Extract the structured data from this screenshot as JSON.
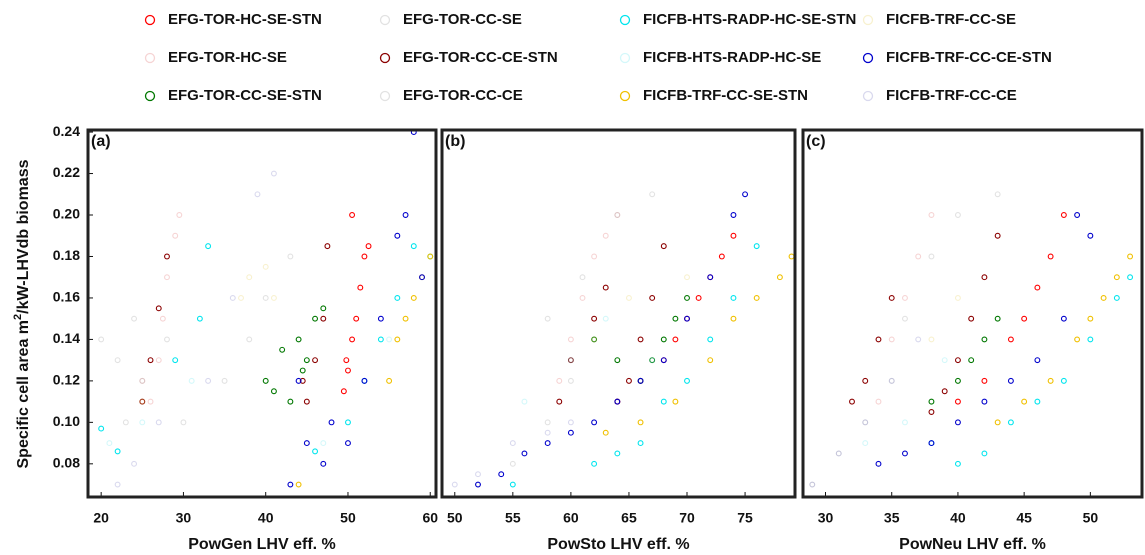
{
  "chart_data": [
    {
      "type": "scatter",
      "label": "(a)",
      "xlabel": "PowGen LHV eff. %",
      "ylabel_parts": [
        "Specific cell area m",
        "2",
        "/kW-LHVdb biomass"
      ],
      "xlim": [
        18.4,
        60.7
      ],
      "xticks": [
        20,
        30,
        40,
        50,
        60
      ],
      "ylim": [
        0.064,
        0.241
      ],
      "yticks": [
        0.08,
        {
          "value": 0.1,
          "label": "0.10"
        },
        0.12,
        0.14,
        0.16,
        0.18,
        {
          "value": 0.2,
          "label": "0.20"
        },
        0.22,
        0.24
      ],
      "series": [
        {
          "name": "EFG-TOR-HC-SE-STN",
          "color": "#ff0000",
          "alpha": 1,
          "x": [
            49.5,
            50,
            50.5,
            51,
            51.5,
            52,
            52.5,
            50.5,
            49.8
          ],
          "values": [
            0.115,
            0.125,
            0.14,
            0.15,
            0.165,
            0.18,
            0.185,
            0.2,
            0.13
          ]
        },
        {
          "name": "EFG-TOR-HC-SE",
          "color": "#e07070",
          "alpha": 0.3,
          "x": [
            26,
            27,
            27.5,
            28,
            29,
            29.5,
            25
          ],
          "values": [
            0.11,
            0.13,
            0.15,
            0.17,
            0.19,
            0.2,
            0.12
          ]
        },
        {
          "name": "EFG-TOR-CC-SE-STN",
          "color": "#007700",
          "alpha": 1,
          "x": [
            40,
            41,
            42,
            43,
            44,
            45,
            46,
            47,
            44.5
          ],
          "values": [
            0.12,
            0.115,
            0.135,
            0.11,
            0.14,
            0.13,
            0.15,
            0.155,
            0.125
          ]
        },
        {
          "name": "EFG-TOR-CC-SE",
          "color": "#a0a0a0",
          "alpha": 0.3,
          "x": [
            20,
            22,
            24,
            25,
            28,
            23
          ],
          "values": [
            0.14,
            0.13,
            0.15,
            0.12,
            0.14,
            0.1
          ]
        },
        {
          "name": "EFG-TOR-CC-CE-STN",
          "color": "#8b0000",
          "alpha": 1,
          "x": [
            25,
            26,
            27,
            28,
            45,
            46,
            47,
            47.5,
            44.5
          ],
          "values": [
            0.11,
            0.13,
            0.155,
            0.18,
            0.11,
            0.13,
            0.15,
            0.185,
            0.12
          ]
        },
        {
          "name": "EFG-TOR-CC-CE",
          "color": "#a0a0a0",
          "alpha": 0.3,
          "x": [
            30,
            35,
            38,
            40,
            43
          ],
          "values": [
            0.1,
            0.12,
            0.14,
            0.16,
            0.18
          ]
        },
        {
          "name": "FICFB-HTS-RADP-HC-SE-STN",
          "color": "#00e5ee",
          "alpha": 1,
          "x": [
            20,
            22,
            29,
            32,
            33,
            46,
            50,
            52,
            54,
            56,
            58,
            60
          ],
          "values": [
            0.097,
            0.086,
            0.13,
            0.15,
            0.185,
            0.086,
            0.1,
            0.12,
            0.14,
            0.16,
            0.185,
            0.18
          ]
        },
        {
          "name": "FICFB-HTS-RADP-HC-SE",
          "color": "#70e8f0",
          "alpha": 0.3,
          "x": [
            21,
            25,
            31,
            47,
            55
          ],
          "values": [
            0.09,
            0.1,
            0.12,
            0.09,
            0.14
          ]
        },
        {
          "name": "FICFB-TRF-CC-SE-STN",
          "color": "#f0c000",
          "alpha": 1,
          "x": [
            55,
            56,
            57,
            58,
            59,
            60,
            44
          ],
          "values": [
            0.12,
            0.14,
            0.15,
            0.16,
            0.17,
            0.18,
            0.07
          ]
        },
        {
          "name": "FICFB-TRF-CC-SE",
          "color": "#e8d060",
          "alpha": 0.3,
          "x": [
            37,
            38,
            40,
            41,
            25
          ],
          "values": [
            0.16,
            0.17,
            0.175,
            0.16,
            0.11
          ]
        },
        {
          "name": "FICFB-TRF-CC-CE-STN",
          "color": "#0000cc",
          "alpha": 1,
          "x": [
            43,
            45,
            47,
            48,
            50,
            52,
            54,
            56,
            57,
            58,
            59,
            44
          ],
          "values": [
            0.07,
            0.09,
            0.08,
            0.1,
            0.09,
            0.12,
            0.15,
            0.19,
            0.2,
            0.24,
            0.17,
            0.12
          ]
        },
        {
          "name": "FICFB-TRF-CC-CE",
          "color": "#8080c8",
          "alpha": 0.3,
          "x": [
            22,
            24,
            27,
            33,
            36,
            39,
            41
          ],
          "values": [
            0.07,
            0.08,
            0.1,
            0.12,
            0.16,
            0.21,
            0.22
          ]
        }
      ]
    },
    {
      "type": "scatter",
      "label": "(b)",
      "xlabel": "PowSto LHV eff. %",
      "xlim": [
        48.9,
        79.3
      ],
      "xticks": [
        50,
        55,
        60,
        65,
        70,
        75
      ],
      "ylim": [
        0.064,
        0.241
      ],
      "series": [
        {
          "color": "#ff0000",
          "alpha": 1,
          "x": [
            64,
            66,
            68,
            69,
            70,
            71,
            72,
            73,
            74
          ],
          "values": [
            0.11,
            0.12,
            0.13,
            0.14,
            0.15,
            0.16,
            0.17,
            0.18,
            0.19
          ]
        },
        {
          "color": "#e07070",
          "alpha": 0.3,
          "x": [
            59,
            60,
            61,
            62,
            63,
            64
          ],
          "values": [
            0.12,
            0.14,
            0.16,
            0.18,
            0.19,
            0.2
          ]
        },
        {
          "color": "#007700",
          "alpha": 1,
          "x": [
            62,
            64,
            66,
            67,
            68,
            69,
            70
          ],
          "values": [
            0.14,
            0.13,
            0.12,
            0.13,
            0.14,
            0.15,
            0.16
          ]
        },
        {
          "color": "#a0a0a0",
          "alpha": 0.3,
          "x": [
            52,
            55,
            58,
            60
          ],
          "values": [
            0.07,
            0.08,
            0.1,
            0.12
          ]
        },
        {
          "color": "#8b0000",
          "alpha": 1,
          "x": [
            59,
            60,
            62,
            63,
            64,
            65,
            66,
            67,
            68
          ],
          "values": [
            0.11,
            0.13,
            0.15,
            0.165,
            0.11,
            0.12,
            0.14,
            0.16,
            0.185
          ]
        },
        {
          "color": "#a0a0a0",
          "alpha": 0.3,
          "x": [
            58,
            61,
            64,
            67
          ],
          "values": [
            0.15,
            0.17,
            0.2,
            0.21
          ]
        },
        {
          "color": "#00e5ee",
          "alpha": 1,
          "x": [
            55,
            62,
            64,
            66,
            68,
            70,
            72,
            74,
            76
          ],
          "values": [
            0.07,
            0.08,
            0.085,
            0.09,
            0.11,
            0.12,
            0.14,
            0.16,
            0.185
          ]
        },
        {
          "color": "#70e8f0",
          "alpha": 0.3,
          "x": [
            56,
            60,
            63,
            67
          ],
          "values": [
            0.11,
            0.13,
            0.15,
            0.13
          ]
        },
        {
          "color": "#f0c000",
          "alpha": 1,
          "x": [
            63,
            66,
            69,
            72,
            74,
            76,
            78,
            79
          ],
          "values": [
            0.095,
            0.1,
            0.11,
            0.13,
            0.15,
            0.16,
            0.17,
            0.18
          ]
        },
        {
          "color": "#e8d060",
          "alpha": 0.3,
          "x": [
            62,
            65,
            70
          ],
          "values": [
            0.14,
            0.16,
            0.17
          ]
        },
        {
          "color": "#0000cc",
          "alpha": 1,
          "x": [
            52,
            54,
            56,
            58,
            60,
            62,
            64,
            66,
            68,
            70,
            72,
            74,
            75
          ],
          "values": [
            0.07,
            0.075,
            0.085,
            0.09,
            0.095,
            0.1,
            0.11,
            0.12,
            0.13,
            0.15,
            0.17,
            0.2,
            0.21
          ]
        },
        {
          "color": "#8080c8",
          "alpha": 0.3,
          "x": [
            50,
            52,
            55,
            58,
            60
          ],
          "values": [
            0.07,
            0.075,
            0.09,
            0.095,
            0.1
          ]
        }
      ]
    },
    {
      "type": "scatter",
      "label": "(c)",
      "xlabel": "PowNeu LHV eff. %",
      "xlim": [
        28.3,
        53.9
      ],
      "xticks": [
        30,
        35,
        40,
        45,
        50
      ],
      "ylim": [
        0.064,
        0.241
      ],
      "series": [
        {
          "color": "#ff0000",
          "alpha": 1,
          "x": [
            40,
            42,
            44,
            45,
            46,
            47,
            48
          ],
          "values": [
            0.11,
            0.12,
            0.14,
            0.15,
            0.165,
            0.18,
            0.2
          ]
        },
        {
          "color": "#e07070",
          "alpha": 0.3,
          "x": [
            34,
            35,
            36,
            37,
            38
          ],
          "values": [
            0.11,
            0.14,
            0.16,
            0.18,
            0.2
          ]
        },
        {
          "color": "#007700",
          "alpha": 1,
          "x": [
            38,
            40,
            41,
            42,
            43
          ],
          "values": [
            0.11,
            0.12,
            0.13,
            0.14,
            0.15
          ]
        },
        {
          "color": "#a0a0a0",
          "alpha": 0.3,
          "x": [
            29,
            31,
            33,
            35
          ],
          "values": [
            0.07,
            0.085,
            0.1,
            0.12
          ]
        },
        {
          "color": "#8b0000",
          "alpha": 1,
          "x": [
            32,
            33,
            34,
            35,
            38,
            39,
            40,
            41,
            42,
            43
          ],
          "values": [
            0.11,
            0.12,
            0.14,
            0.16,
            0.105,
            0.115,
            0.13,
            0.15,
            0.17,
            0.19
          ]
        },
        {
          "color": "#a0a0a0",
          "alpha": 0.3,
          "x": [
            36,
            38,
            40,
            43
          ],
          "values": [
            0.15,
            0.18,
            0.2,
            0.21
          ]
        },
        {
          "color": "#00e5ee",
          "alpha": 1,
          "x": [
            38,
            40,
            42,
            44,
            46,
            48,
            50,
            52,
            53
          ],
          "values": [
            0.09,
            0.08,
            0.085,
            0.1,
            0.11,
            0.12,
            0.14,
            0.16,
            0.17
          ]
        },
        {
          "color": "#70e8f0",
          "alpha": 0.3,
          "x": [
            33,
            36,
            39
          ],
          "values": [
            0.09,
            0.1,
            0.13
          ]
        },
        {
          "color": "#f0c000",
          "alpha": 1,
          "x": [
            43,
            45,
            47,
            49,
            50,
            51,
            52,
            53
          ],
          "values": [
            0.1,
            0.11,
            0.12,
            0.14,
            0.15,
            0.16,
            0.17,
            0.18
          ]
        },
        {
          "color": "#e8d060",
          "alpha": 0.3,
          "x": [
            38,
            40
          ],
          "values": [
            0.14,
            0.16
          ]
        },
        {
          "color": "#0000cc",
          "alpha": 1,
          "x": [
            34,
            36,
            38,
            40,
            42,
            44,
            46,
            48,
            49,
            50
          ],
          "values": [
            0.08,
            0.085,
            0.09,
            0.1,
            0.11,
            0.12,
            0.13,
            0.15,
            0.2,
            0.19
          ]
        },
        {
          "color": "#8080c8",
          "alpha": 0.3,
          "x": [
            29,
            31,
            33,
            35,
            37
          ],
          "values": [
            0.07,
            0.085,
            0.1,
            0.12,
            0.14
          ]
        }
      ]
    }
  ]
}
